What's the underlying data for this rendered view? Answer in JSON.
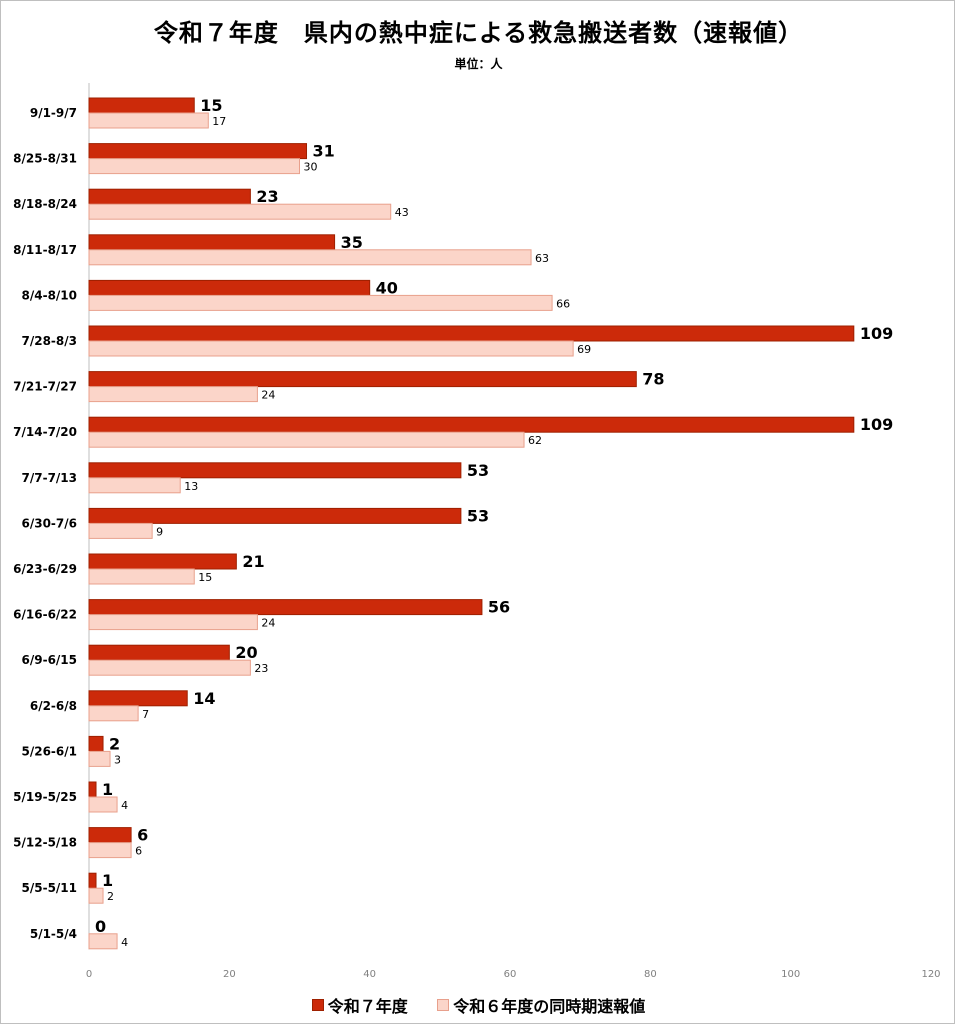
{
  "chart_data": {
    "type": "bar",
    "orientation": "horizontal",
    "title": "令和７年度　県内の熱中症による救急搬送者数（速報値）",
    "subtitle": "単位：人",
    "categories": [
      "9/1-9/7",
      "8/25-8/31",
      "8/18-8/24",
      "8/11-8/17",
      "8/4-8/10",
      "7/28-8/3",
      "7/21-7/27",
      "7/14-7/20",
      "7/7-7/13",
      "6/30-7/6",
      "6/23-6/29",
      "6/16-6/22",
      "6/9-6/15",
      "6/2-6/8",
      "5/26-6/1",
      "5/19-5/25",
      "5/12-5/18",
      "5/5-5/11",
      "5/1-5/4"
    ],
    "series": [
      {
        "name": "令和７年度",
        "color": "#cc2a0a",
        "border": "#9e2000",
        "values": [
          15,
          31,
          23,
          35,
          40,
          109,
          78,
          109,
          53,
          53,
          21,
          56,
          20,
          14,
          2,
          1,
          6,
          1,
          0
        ]
      },
      {
        "name": "令和６年度の同時期速報値",
        "color": "#fbd5c9",
        "border": "#e8a08c",
        "values": [
          17,
          30,
          43,
          63,
          66,
          69,
          24,
          62,
          13,
          9,
          15,
          24,
          23,
          7,
          3,
          4,
          6,
          2,
          4
        ]
      }
    ],
    "xlim": [
      0,
      120
    ],
    "xticks": [
      "0",
      "20",
      "40",
      "60",
      "80",
      "100",
      "120"
    ],
    "grid": false,
    "legend_position": "bottom"
  }
}
